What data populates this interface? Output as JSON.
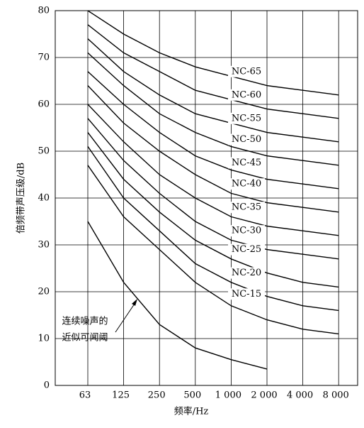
{
  "chart_data": {
    "type": "line",
    "x_label": "频率/Hz",
    "y_label": "倍频带声压级/dB",
    "categories": [
      "63",
      "125",
      "250",
      "500",
      "1 000",
      "2 000",
      "4 000",
      "8 000"
    ],
    "ylim": [
      0,
      80
    ],
    "yticks": [
      0,
      10,
      20,
      30,
      40,
      50,
      60,
      70,
      80
    ],
    "grid": true,
    "series": [
      {
        "name": "NC-65",
        "color": "#000000",
        "values": [
          80,
          75,
          71,
          68,
          66,
          64,
          63,
          62
        ]
      },
      {
        "name": "NC-60",
        "color": "#000000",
        "values": [
          77,
          71,
          67,
          63,
          61,
          59,
          58,
          57
        ]
      },
      {
        "name": "NC-55",
        "color": "#000000",
        "values": [
          74,
          67,
          62,
          58,
          56,
          54,
          53,
          52
        ]
      },
      {
        "name": "NC-50",
        "color": "#000000",
        "values": [
          71,
          64,
          58,
          54,
          51,
          49,
          48,
          47
        ]
      },
      {
        "name": "NC-45",
        "color": "#000000",
        "values": [
          67,
          60,
          54,
          49,
          46,
          44,
          43,
          42
        ]
      },
      {
        "name": "NC-40",
        "color": "#000000",
        "values": [
          64,
          56,
          50,
          45,
          41,
          39,
          38,
          37
        ]
      },
      {
        "name": "NC-35",
        "color": "#000000",
        "values": [
          60,
          52,
          45,
          40,
          36,
          34,
          33,
          32
        ]
      },
      {
        "name": "NC-30",
        "color": "#000000",
        "values": [
          57,
          48,
          41,
          35,
          31,
          29,
          28,
          27
        ]
      },
      {
        "name": "NC-25",
        "color": "#000000",
        "values": [
          54,
          44,
          37,
          31,
          27,
          24,
          22,
          21
        ]
      },
      {
        "name": "NC-20",
        "color": "#000000",
        "values": [
          51,
          40,
          33,
          26,
          22,
          19,
          17,
          16
        ]
      },
      {
        "name": "NC-15",
        "color": "#000000",
        "values": [
          47,
          36,
          29,
          22,
          17,
          14,
          12,
          11
        ]
      },
      {
        "color": "#000000",
        "values": [
          35,
          22,
          13,
          8,
          5.5,
          3.5,
          null,
          null
        ]
      }
    ],
    "annotation": [
      "连续噪声的",
      "近似可闻阈"
    ]
  }
}
